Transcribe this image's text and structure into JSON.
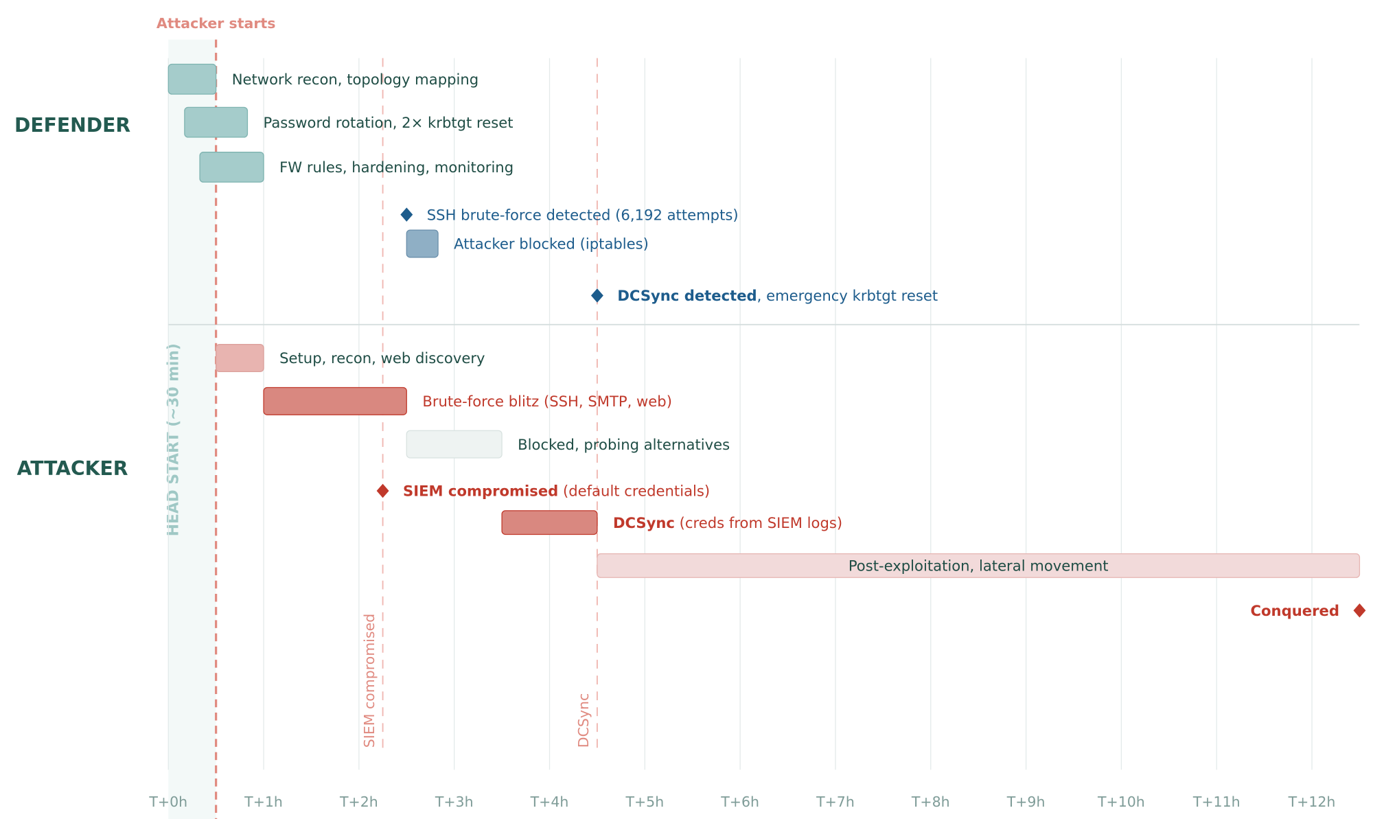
{
  "chart_data": {
    "type": "gantt-timeline",
    "title": "",
    "x_unit": "hours",
    "xlim": [
      0,
      12.5
    ],
    "x_ticks": [
      0,
      1,
      2,
      3,
      4,
      5,
      6,
      7,
      8,
      9,
      10,
      11,
      12
    ],
    "x_tick_labels": [
      "T+0h",
      "T+1h",
      "T+2h",
      "T+3h",
      "T+4h",
      "T+5h",
      "T+6h",
      "T+7h",
      "T+8h",
      "T+9h",
      "T+10h",
      "T+11h",
      "T+12h"
    ],
    "grid": true,
    "lanes": [
      "DEFENDER",
      "ATTACKER"
    ],
    "head_start": {
      "start": 0,
      "end": 0.5,
      "label": "HEAD START (~30 min)"
    },
    "markers": [
      {
        "x": 0.5,
        "label": "Attacker starts",
        "style": "bold-dashed"
      },
      {
        "x": 2.25,
        "label": "SIEM compromised",
        "style": "dashed"
      },
      {
        "x": 4.5,
        "label": "DCSync",
        "style": "dashed"
      }
    ],
    "items": [
      {
        "lane": "DEFENDER",
        "kind": "bar",
        "start": 0,
        "end": 0.5,
        "bold": "",
        "label": "Network recon, topology mapping",
        "style": "teal"
      },
      {
        "lane": "DEFENDER",
        "kind": "bar",
        "start": 0.17,
        "end": 0.83,
        "bold": "",
        "label": "Password rotation, 2× krbtgt reset",
        "style": "teal"
      },
      {
        "lane": "DEFENDER",
        "kind": "bar",
        "start": 0.33,
        "end": 1.0,
        "bold": "",
        "label": "FW rules, hardening, monitoring",
        "style": "teal"
      },
      {
        "lane": "DEFENDER",
        "kind": "milestone",
        "start": 2.5,
        "bold": "",
        "label": "SSH brute-force detected (6,192 attempts)",
        "style": "blue"
      },
      {
        "lane": "DEFENDER",
        "kind": "bar",
        "start": 2.5,
        "end": 2.83,
        "bold": "",
        "label": "Attacker blocked (iptables)",
        "style": "blue"
      },
      {
        "lane": "DEFENDER",
        "kind": "milestone",
        "start": 4.5,
        "bold": "DCSync detected",
        "label": ", emergency krbtgt reset",
        "style": "blue"
      },
      {
        "lane": "ATTACKER",
        "kind": "bar",
        "start": 0.5,
        "end": 1.0,
        "bold": "",
        "label": "Setup, recon, web discovery",
        "style": "lightred"
      },
      {
        "lane": "ATTACKER",
        "kind": "bar",
        "start": 1.0,
        "end": 2.5,
        "bold": "",
        "label": "Brute-force blitz (SSH, SMTP, web)",
        "style": "red"
      },
      {
        "lane": "ATTACKER",
        "kind": "bar",
        "start": 2.5,
        "end": 3.5,
        "bold": "",
        "label": "Blocked, probing alternatives",
        "style": "grey"
      },
      {
        "lane": "ATTACKER",
        "kind": "milestone",
        "start": 2.25,
        "bold": "SIEM compromised",
        "label": " (default credentials)",
        "style": "red"
      },
      {
        "lane": "ATTACKER",
        "kind": "bar",
        "start": 3.5,
        "end": 4.5,
        "bold": "DCSync",
        "label": " (creds from SIEM logs)",
        "style": "red"
      },
      {
        "lane": "ATTACKER",
        "kind": "bar",
        "start": 4.5,
        "end": 12.5,
        "bold": "",
        "label": "Post-exploitation, lateral movement",
        "style": "pale",
        "label_inside": true
      },
      {
        "lane": "ATTACKER",
        "kind": "milestone",
        "start": 12.5,
        "bold": "Conquered",
        "label": "",
        "style": "red",
        "label_left": true
      }
    ],
    "colors": {
      "teal": "#a5cccb",
      "teal_stroke": "#7db3b0",
      "blue": "#8fafc5",
      "blue_stroke": "#6a8fab",
      "blue_text": "#1d5c8c",
      "red": "#d98880",
      "red_stroke": "#c0392b",
      "red_text": "#c0392b",
      "lightred": "#e8b4b0",
      "pale": "#f2dada",
      "grey": "#eef3f2",
      "dark_text": "#1f4d45",
      "marker": "#e08a80",
      "grid": "#e3eaea"
    }
  }
}
